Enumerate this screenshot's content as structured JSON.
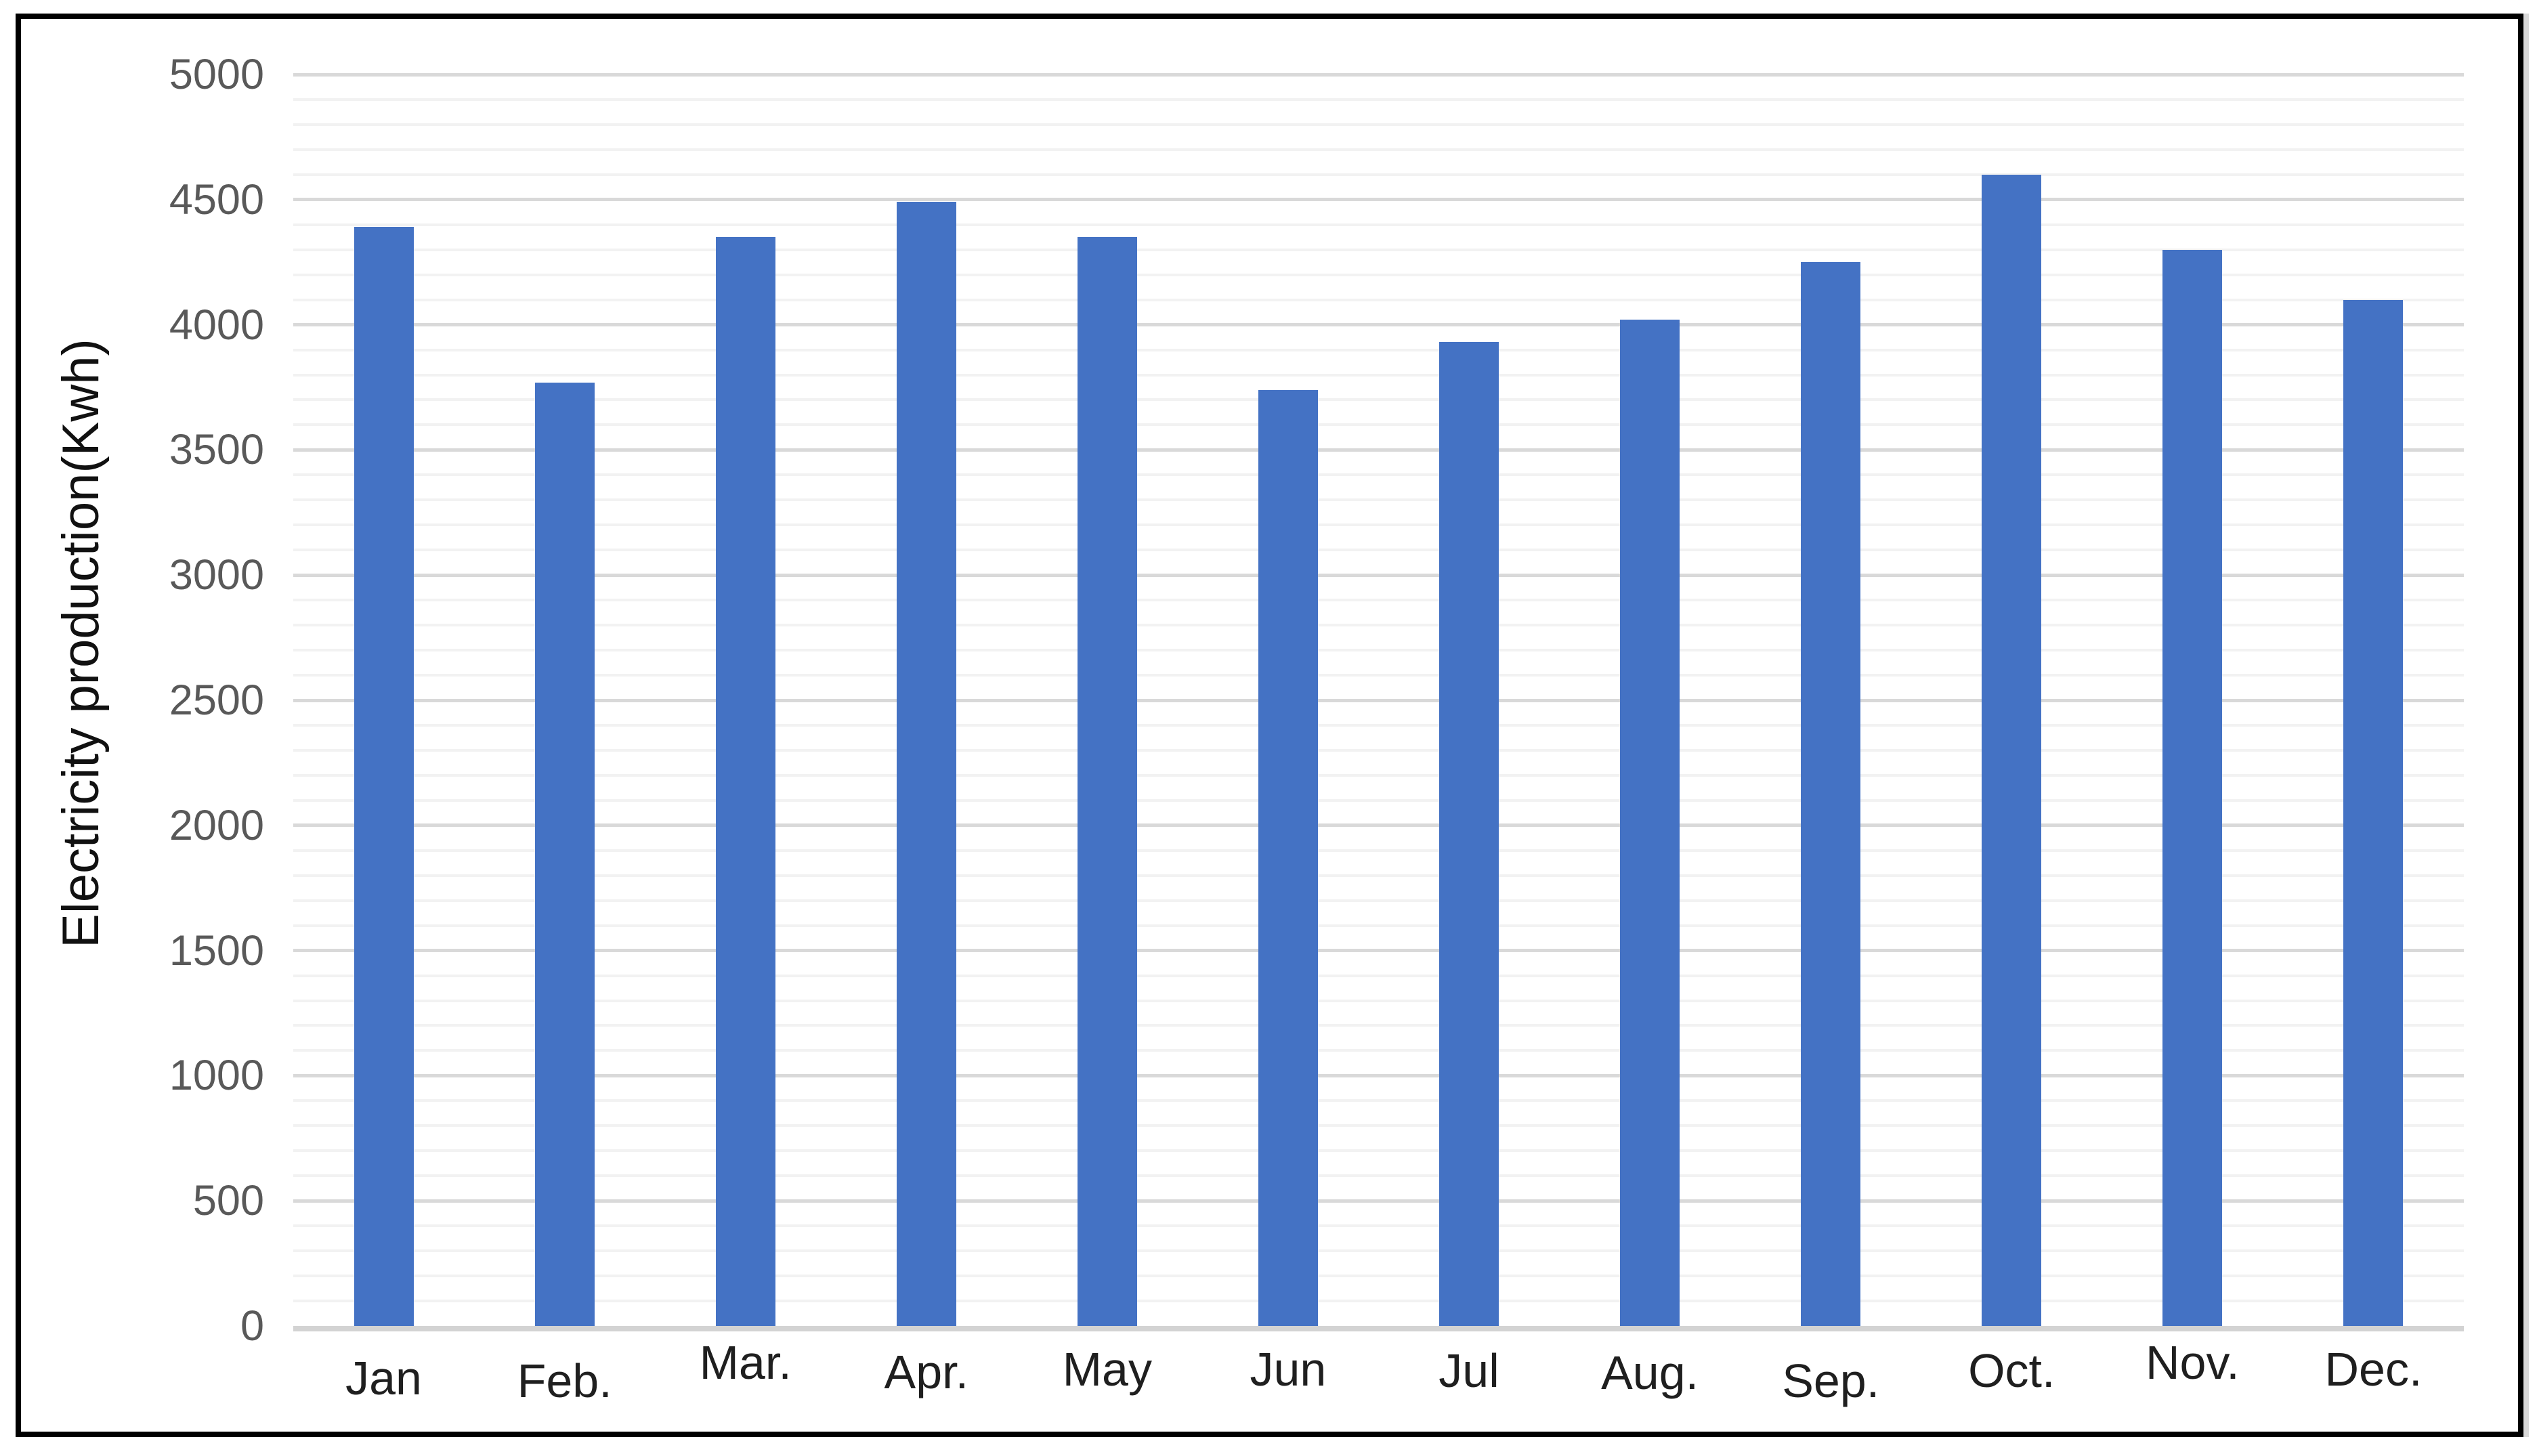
{
  "chart_data": {
    "type": "bar",
    "title": "",
    "xlabel": "",
    "ylabel": "Electricity production(Kwh)",
    "categories": [
      "Jan",
      "Feb.",
      "Mar.",
      "Apr.",
      "May",
      "Jun",
      "Jul",
      "Aug.",
      "Sep.",
      "Oct.",
      "Nov.",
      "Dec."
    ],
    "values": [
      4390,
      3770,
      4350,
      4490,
      4350,
      3740,
      3930,
      4020,
      4250,
      4600,
      4300,
      4100
    ],
    "ylim": [
      0,
      5000
    ],
    "y_major_step": 500,
    "y_minor_step": 100,
    "y_tick_labels": [
      "0",
      "500",
      "1000",
      "1500",
      "2000",
      "2500",
      "3000",
      "3500",
      "4000",
      "4500",
      "5000"
    ],
    "grid": true,
    "legend": "none",
    "colors": {
      "bar": "#4472c4",
      "minor_gridline": "#f2f2f2",
      "major_gridline": "#d9d9d9",
      "axis_line": "#d3d3d3",
      "y_tick_text": "#595959",
      "x_tick_text": "#1f1f1f",
      "y_title_text": "#111111",
      "frame_border": "#000000",
      "background": "#ffffff"
    }
  }
}
